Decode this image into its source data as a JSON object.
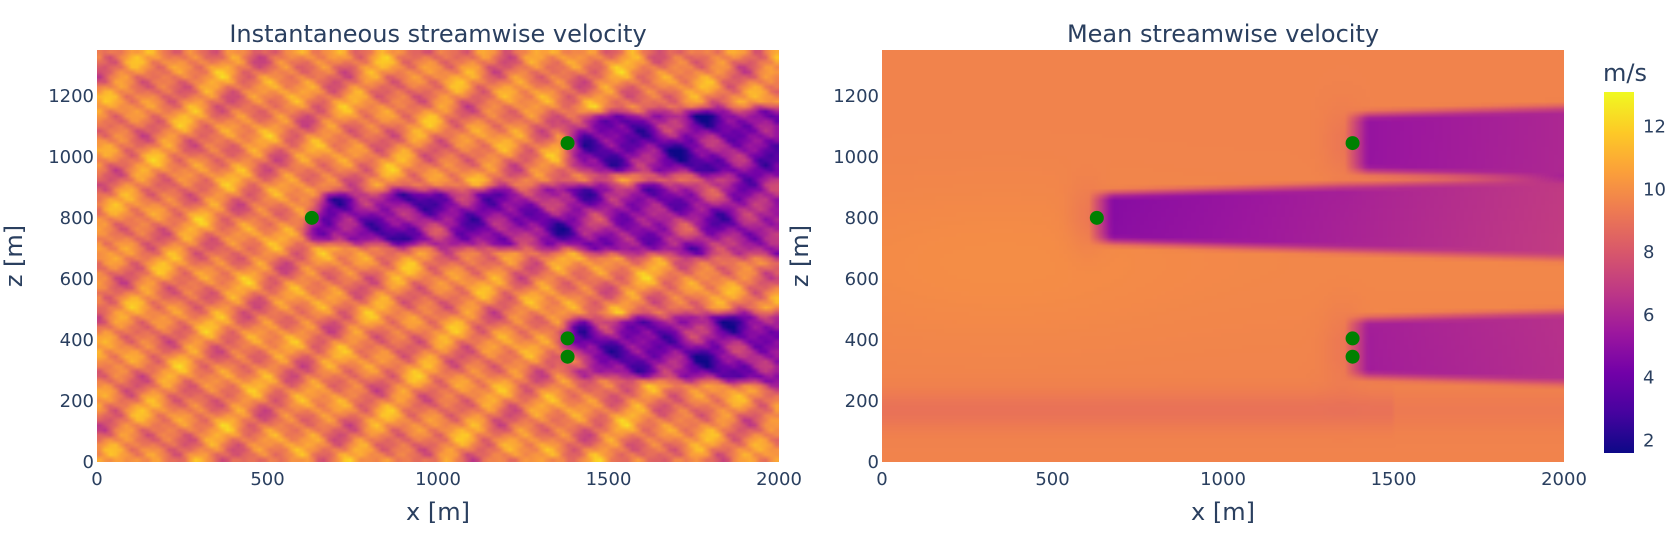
{
  "chart_data": [
    {
      "type": "heatmap",
      "title": "Instantaneous streamwise velocity",
      "xlabel": "x [m]",
      "ylabel": "z [m]",
      "xlim": [
        0,
        2000
      ],
      "ylim": [
        0,
        1350
      ],
      "x_ticks": [
        0,
        500,
        1000,
        1500,
        2000
      ],
      "y_ticks": [
        0,
        200,
        400,
        600,
        800,
        1000,
        1200
      ],
      "colorscale": "plasma",
      "background_velocity": 9.5,
      "wakes": [
        {
          "x_start": 630,
          "z": 800,
          "velocity": 4.5
        },
        {
          "x_start": 1380,
          "z": 1045,
          "velocity": 4.2
        },
        {
          "x_start": 1380,
          "z": 375,
          "velocity": 4.4
        }
      ],
      "turbines": {
        "name": "turbines",
        "color": "#008000",
        "x": [
          630,
          1380,
          1380,
          1380
        ],
        "z": [
          800,
          1045,
          405,
          345
        ]
      }
    },
    {
      "type": "heatmap",
      "title": "Mean streamwise velocity",
      "xlabel": "x [m]",
      "ylabel": "z [m]",
      "xlim": [
        0,
        2000
      ],
      "ylim": [
        0,
        1350
      ],
      "x_ticks": [
        0,
        500,
        1000,
        1500,
        2000
      ],
      "y_ticks": [
        0,
        200,
        400,
        600,
        800,
        1000,
        1200
      ],
      "colorscale": "plasma",
      "background_velocity": 9.6,
      "wakes": [
        {
          "x_start": 630,
          "z": 800,
          "velocity": 4.6
        },
        {
          "x_start": 1380,
          "z": 1045,
          "velocity": 5.2
        },
        {
          "x_start": 1380,
          "z": 375,
          "velocity": 5.6
        }
      ],
      "turbines": {
        "name": "turbines",
        "color": "#008000",
        "x": [
          630,
          1380,
          1380,
          1380
        ],
        "z": [
          800,
          1045,
          405,
          345
        ]
      }
    }
  ],
  "colorbar": {
    "title": "m/s",
    "min": 1.6,
    "max": 13.1,
    "ticks": [
      2,
      4,
      6,
      8,
      10,
      12
    ]
  }
}
